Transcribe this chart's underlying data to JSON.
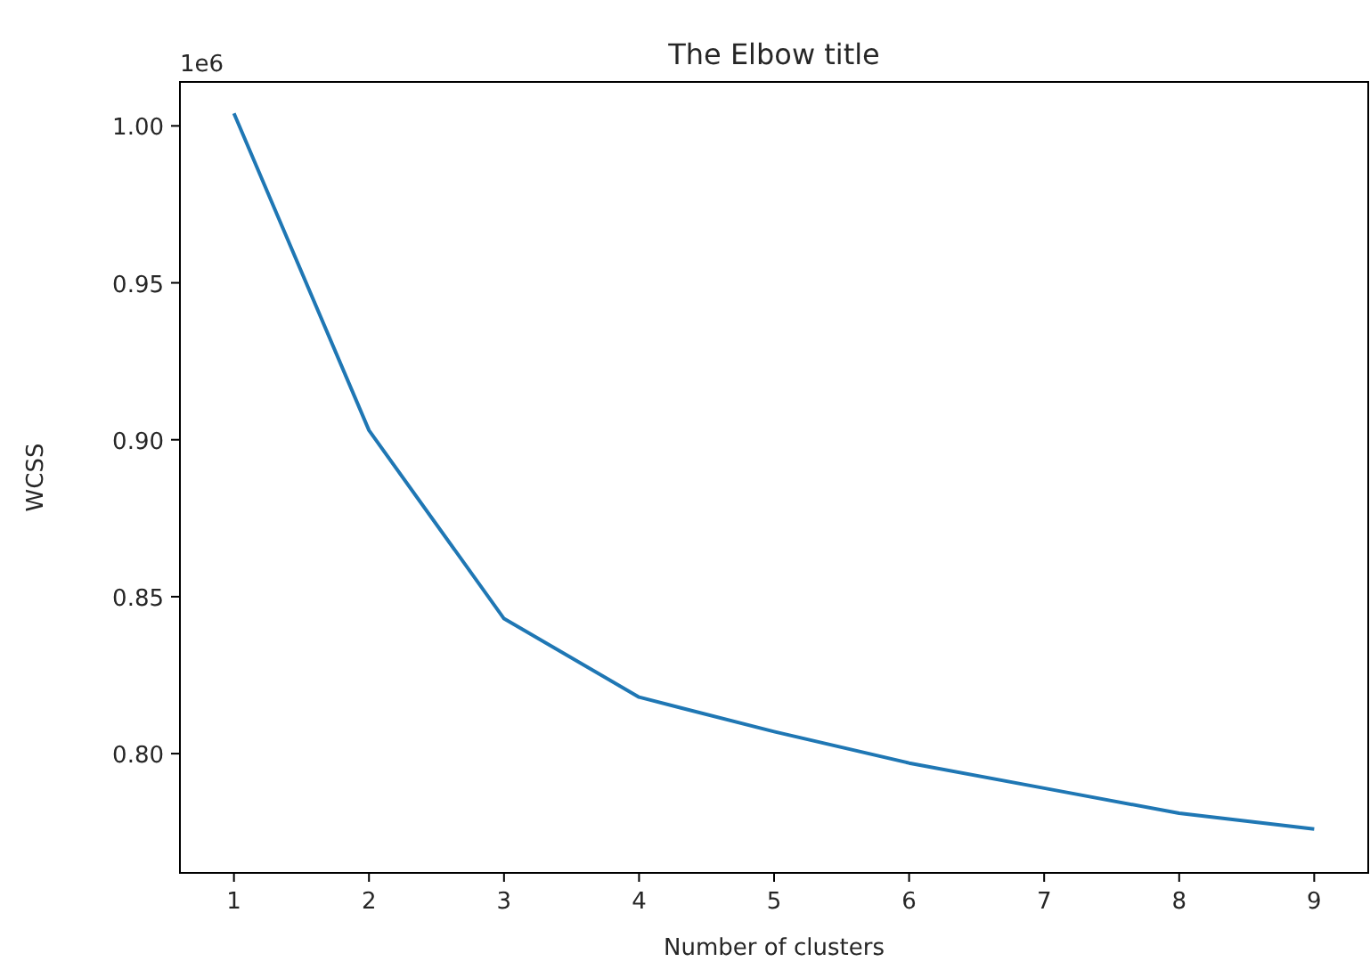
{
  "chart_data": {
    "type": "line",
    "title": "The Elbow title",
    "xlabel": "Number of clusters",
    "ylabel": "WCSS",
    "annotations": [
      "1e6"
    ],
    "x": [
      1,
      2,
      3,
      4,
      5,
      6,
      7,
      8,
      9
    ],
    "series": [
      {
        "color": "#1f77b4",
        "values": [
          1.004,
          0.903,
          0.843,
          0.818,
          0.807,
          0.797,
          0.789,
          0.781,
          0.776
        ]
      }
    ],
    "xlim": [
      0.6,
      9.4
    ],
    "xticks": [
      1,
      2,
      3,
      4,
      5,
      6,
      7,
      8,
      9
    ],
    "ylim": [
      0.762,
      1.014
    ],
    "yticks": [
      {
        "value": 0.8,
        "label": "0.80"
      },
      {
        "value": 0.85,
        "label": "0.85"
      },
      {
        "value": 0.9,
        "label": "0.90"
      },
      {
        "value": 0.95,
        "label": "0.95"
      },
      {
        "value": 1.0,
        "label": "1.00"
      }
    ],
    "grid": false
  }
}
